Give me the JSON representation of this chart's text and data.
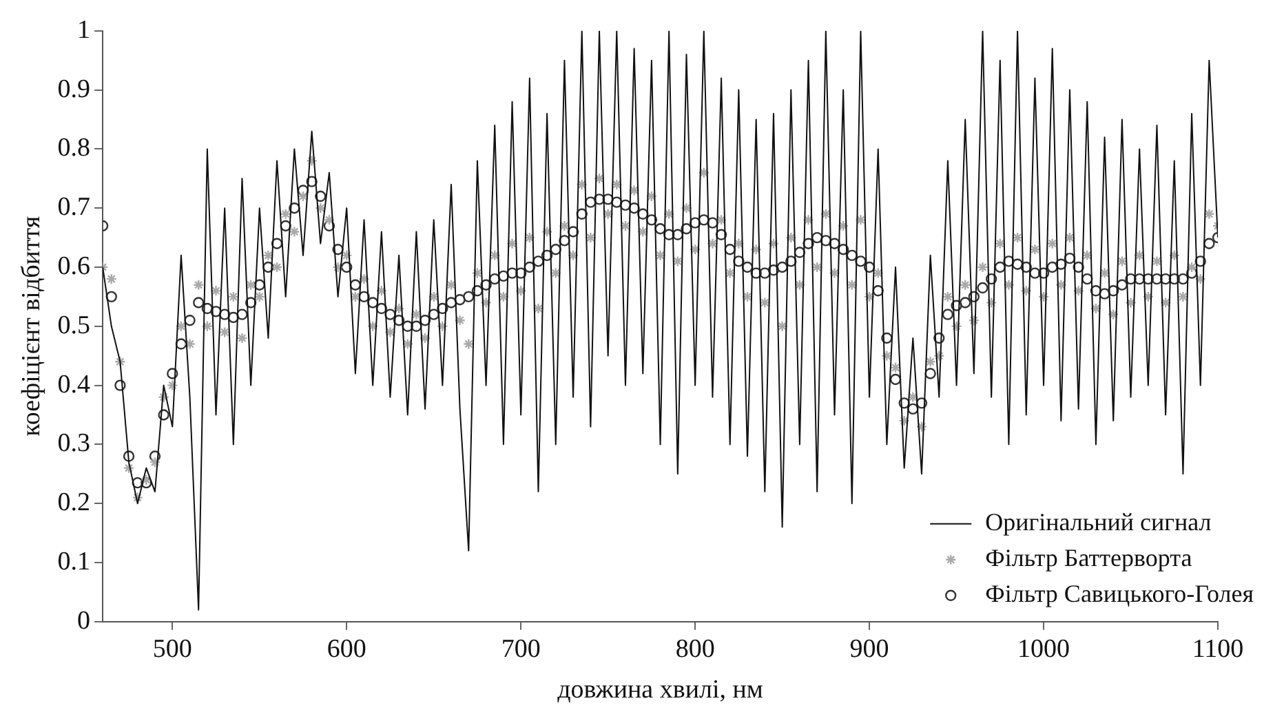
{
  "chart_data": {
    "type": "line",
    "xlabel": "довжина хвилі, нм",
    "ylabel": "коефіцієнт відбиття",
    "x": [
      460,
      465,
      470,
      475,
      480,
      485,
      490,
      495,
      500,
      505,
      510,
      515,
      520,
      525,
      530,
      535,
      540,
      545,
      550,
      555,
      560,
      565,
      570,
      575,
      580,
      585,
      590,
      595,
      600,
      605,
      610,
      615,
      620,
      625,
      630,
      635,
      640,
      645,
      650,
      655,
      660,
      665,
      670,
      675,
      680,
      685,
      690,
      695,
      700,
      705,
      710,
      715,
      720,
      725,
      730,
      735,
      740,
      745,
      750,
      755,
      760,
      765,
      770,
      775,
      780,
      785,
      790,
      795,
      800,
      805,
      810,
      815,
      820,
      825,
      830,
      835,
      840,
      845,
      850,
      855,
      860,
      865,
      870,
      875,
      880,
      885,
      890,
      895,
      900,
      905,
      910,
      915,
      920,
      925,
      930,
      935,
      940,
      945,
      950,
      955,
      960,
      965,
      970,
      975,
      980,
      985,
      990,
      995,
      1000,
      1005,
      1010,
      1015,
      1020,
      1025,
      1030,
      1035,
      1040,
      1045,
      1050,
      1055,
      1060,
      1065,
      1070,
      1075,
      1080,
      1085,
      1090,
      1095,
      1100
    ],
    "series": [
      {
        "name": "Оригінальний сигнал",
        "marker": "none",
        "color": "#111111",
        "values": [
          0.6,
          0.5,
          0.44,
          0.27,
          0.2,
          0.26,
          0.22,
          0.4,
          0.33,
          0.62,
          0.38,
          0.02,
          0.8,
          0.35,
          0.7,
          0.3,
          0.75,
          0.4,
          0.7,
          0.48,
          0.78,
          0.55,
          0.8,
          0.62,
          0.83,
          0.64,
          0.76,
          0.55,
          0.7,
          0.42,
          0.68,
          0.4,
          0.66,
          0.38,
          0.62,
          0.35,
          0.66,
          0.36,
          0.68,
          0.4,
          0.74,
          0.36,
          0.12,
          0.78,
          0.4,
          0.84,
          0.3,
          0.88,
          0.35,
          0.92,
          0.22,
          0.86,
          0.3,
          0.95,
          0.38,
          1.0,
          0.33,
          1.0,
          0.45,
          1.0,
          0.4,
          0.97,
          0.42,
          0.95,
          0.3,
          1.0,
          0.25,
          0.96,
          0.4,
          1.0,
          0.38,
          0.92,
          0.3,
          0.9,
          0.28,
          0.85,
          0.22,
          0.86,
          0.16,
          0.9,
          0.3,
          0.95,
          0.22,
          1.0,
          0.35,
          0.9,
          0.2,
          1.0,
          0.38,
          0.8,
          0.3,
          0.6,
          0.26,
          0.48,
          0.25,
          0.62,
          0.38,
          0.78,
          0.4,
          0.85,
          0.42,
          1.0,
          0.38,
          0.95,
          0.3,
          1.0,
          0.35,
          0.92,
          0.4,
          0.97,
          0.34,
          0.9,
          0.36,
          0.88,
          0.3,
          0.82,
          0.34,
          0.85,
          0.38,
          0.8,
          0.4,
          0.84,
          0.35,
          0.78,
          0.25,
          0.86,
          0.4,
          0.95,
          0.65
        ]
      },
      {
        "name": "Фільтр Баттерворта",
        "type": "scatter",
        "marker": "cross",
        "color": "#aaaaaa",
        "values": [
          0.6,
          0.58,
          0.44,
          0.26,
          0.21,
          0.24,
          0.27,
          0.38,
          0.4,
          0.5,
          0.47,
          0.57,
          0.5,
          0.56,
          0.49,
          0.55,
          0.48,
          0.57,
          0.55,
          0.62,
          0.6,
          0.69,
          0.66,
          0.72,
          0.78,
          0.7,
          0.68,
          0.6,
          0.62,
          0.55,
          0.58,
          0.5,
          0.56,
          0.49,
          0.53,
          0.47,
          0.52,
          0.48,
          0.55,
          0.5,
          0.57,
          0.51,
          0.47,
          0.59,
          0.54,
          0.62,
          0.55,
          0.64,
          0.56,
          0.65,
          0.53,
          0.66,
          0.59,
          0.67,
          0.62,
          0.74,
          0.65,
          0.75,
          0.69,
          0.74,
          0.67,
          0.73,
          0.66,
          0.72,
          0.62,
          0.69,
          0.61,
          0.7,
          0.63,
          0.76,
          0.64,
          0.68,
          0.59,
          0.64,
          0.55,
          0.63,
          0.54,
          0.64,
          0.5,
          0.65,
          0.57,
          0.68,
          0.6,
          0.69,
          0.59,
          0.67,
          0.57,
          0.68,
          0.55,
          0.59,
          0.45,
          0.43,
          0.34,
          0.38,
          0.33,
          0.44,
          0.45,
          0.55,
          0.5,
          0.57,
          0.51,
          0.6,
          0.54,
          0.64,
          0.57,
          0.65,
          0.56,
          0.63,
          0.55,
          0.64,
          0.57,
          0.65,
          0.56,
          0.62,
          0.53,
          0.59,
          0.52,
          0.61,
          0.54,
          0.62,
          0.55,
          0.61,
          0.54,
          0.62,
          0.55,
          0.6,
          0.58,
          0.69,
          0.67
        ]
      },
      {
        "name": "Фільтр Савицького-Голея",
        "type": "scatter",
        "marker": "circle",
        "color": "#333333",
        "values": [
          0.67,
          0.55,
          0.4,
          0.28,
          0.235,
          0.235,
          0.28,
          0.35,
          0.42,
          0.47,
          0.51,
          0.54,
          0.53,
          0.525,
          0.52,
          0.515,
          0.52,
          0.54,
          0.57,
          0.6,
          0.64,
          0.67,
          0.7,
          0.73,
          0.745,
          0.72,
          0.67,
          0.63,
          0.6,
          0.57,
          0.55,
          0.54,
          0.53,
          0.52,
          0.51,
          0.5,
          0.5,
          0.51,
          0.52,
          0.53,
          0.54,
          0.545,
          0.55,
          0.56,
          0.57,
          0.58,
          0.585,
          0.59,
          0.59,
          0.6,
          0.61,
          0.62,
          0.63,
          0.645,
          0.66,
          0.69,
          0.71,
          0.715,
          0.715,
          0.71,
          0.705,
          0.7,
          0.69,
          0.68,
          0.665,
          0.655,
          0.655,
          0.665,
          0.675,
          0.68,
          0.675,
          0.655,
          0.63,
          0.61,
          0.6,
          0.59,
          0.59,
          0.595,
          0.6,
          0.61,
          0.625,
          0.64,
          0.65,
          0.645,
          0.64,
          0.63,
          0.62,
          0.61,
          0.6,
          0.56,
          0.48,
          0.41,
          0.37,
          0.36,
          0.37,
          0.42,
          0.48,
          0.52,
          0.535,
          0.54,
          0.55,
          0.565,
          0.58,
          0.6,
          0.61,
          0.605,
          0.6,
          0.59,
          0.59,
          0.6,
          0.605,
          0.615,
          0.6,
          0.58,
          0.56,
          0.555,
          0.56,
          0.57,
          0.58,
          0.58,
          0.58,
          0.58,
          0.58,
          0.58,
          0.58,
          0.59,
          0.61,
          0.64,
          0.65
        ]
      }
    ],
    "xlim": [
      460,
      1100
    ],
    "xticks": [
      500,
      600,
      700,
      800,
      900,
      1000,
      1100
    ],
    "ylim": [
      0,
      1
    ],
    "yticks": [
      0,
      0.1,
      0.2,
      0.3,
      0.4,
      0.5,
      0.6,
      0.7,
      0.8,
      0.9,
      1
    ],
    "grid": false,
    "legend": "bottom right"
  }
}
